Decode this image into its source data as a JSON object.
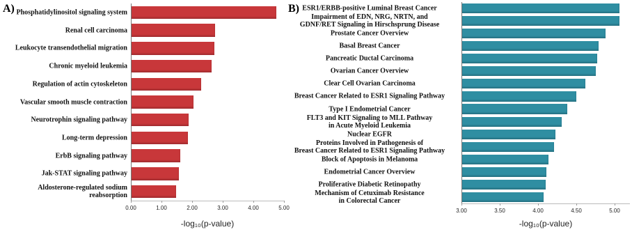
{
  "chart_data": [
    {
      "type": "bar",
      "panel_label": "A)",
      "orientation": "horizontal",
      "color": "#c8373a",
      "categories": [
        "Phosphatidylinositol signaling system",
        "Renal cell carcinoma",
        "Leukocyte transendothelial migration",
        "Chronic myeloid leukemia",
        "Regulation of actin cytoskeleton",
        "Vascular smooth muscle contraction",
        "Neurotrophin signaling pathway",
        "Long-term depression",
        "ErbB signaling pathway",
        "Jak-STAT signaling pathway",
        "Aldosterone-regulated sodium reabsorption"
      ],
      "values": [
        4.75,
        2.75,
        2.73,
        2.64,
        2.3,
        2.05,
        1.89,
        1.86,
        1.61,
        1.57,
        1.48
      ],
      "xlim": [
        0,
        5
      ],
      "xticks": [
        {
          "value": 0,
          "label": "0.00"
        },
        {
          "value": 1,
          "label": "1.00"
        },
        {
          "value": 2,
          "label": "2.00"
        },
        {
          "value": 3,
          "label": "3.00"
        },
        {
          "value": 4,
          "label": "4.00"
        },
        {
          "value": 5,
          "label": "5.00"
        }
      ],
      "x_label": "-log₁₀(p-value)"
    },
    {
      "type": "bar",
      "panel_label": "B)",
      "orientation": "horizontal",
      "color": "#2f8ea2",
      "categories": [
        "ESR1/ERBB-positive Luminal Breast Cancer",
        "Impairment of EDN, NRG, NRTN, and\nGDNF/RET Signaling in Hirschsprung Disease",
        "Prostate Cancer Overview",
        "Basal Breast Cancer",
        "Pancreatic Ductal Carcinoma",
        "Ovarian Cancer Overview",
        "Clear Cell Ovarian Carcinoma",
        "Breast Cancer Related to ESR1 Signaling Pathway",
        "Type I Endometrial Cancer",
        "FLT3 and KIT Signaling to MLL Pathway\nin Acute Myeloid Leukemia",
        "Nuclear EGFR",
        "Proteins Involved in Pathogenesis of\nBreast Cancer Related to ESR1 Signaling Pathway",
        "Block of Apoptosis in Melanoma",
        "Endometrial Cancer Overview",
        "Proliferative Diabetic Retinopathy",
        "Mechanism of Cetuximab Resistance\nin Colorectal Cancer"
      ],
      "values": [
        5.06,
        5.06,
        4.88,
        4.79,
        4.77,
        4.75,
        4.62,
        4.5,
        4.38,
        4.31,
        4.23,
        4.21,
        4.14,
        4.11,
        4.1,
        4.07
      ],
      "xlim": [
        3,
        5.2
      ],
      "xticks": [
        {
          "value": 3,
          "label": "3.00"
        },
        {
          "value": 3.5,
          "label": "3.50"
        },
        {
          "value": 4,
          "label": "4.00"
        },
        {
          "value": 4.5,
          "label": "4.50"
        },
        {
          "value": 5,
          "label": "5.00"
        }
      ],
      "x_label": "-log₁₀(p-value)"
    }
  ]
}
